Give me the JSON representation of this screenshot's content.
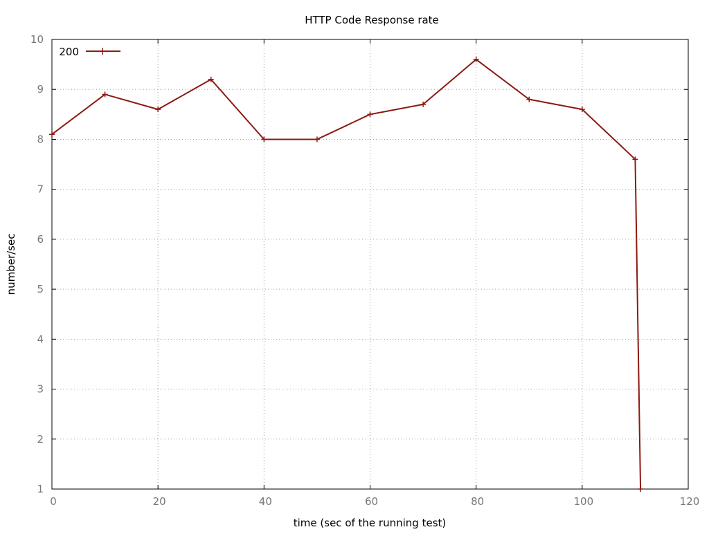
{
  "chart_data": {
    "type": "line",
    "title": "HTTP Code Response rate",
    "xlabel": "time (sec of the running test)",
    "ylabel": "number/sec",
    "xlim": [
      0,
      120
    ],
    "ylim": [
      1,
      10
    ],
    "x_ticks": [
      0,
      20,
      40,
      60,
      80,
      100,
      120
    ],
    "y_ticks": [
      1,
      2,
      3,
      4,
      5,
      6,
      7,
      8,
      9,
      10
    ],
    "grid": true,
    "legend_position": "top-left",
    "series": [
      {
        "name": "200",
        "color": "#8b1a10",
        "marker": "plus",
        "x": [
          0,
          10,
          20,
          30,
          40,
          50,
          60,
          70,
          80,
          90,
          100,
          110,
          111
        ],
        "y": [
          8.1,
          8.9,
          8.6,
          9.2,
          8.0,
          8.0,
          8.5,
          8.7,
          9.6,
          8.8,
          8.6,
          7.6,
          1.0
        ]
      }
    ]
  }
}
